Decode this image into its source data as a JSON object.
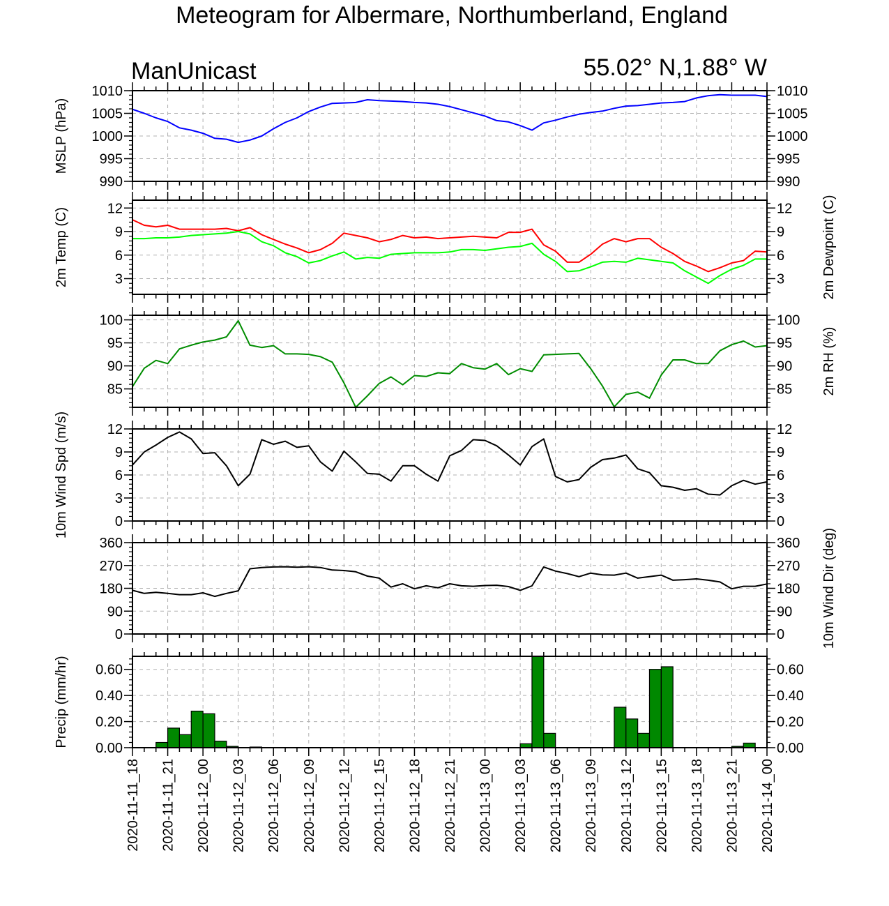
{
  "header": {
    "title": "Meteogram for Albermare, Northumberland, England",
    "source": "ManUnicast",
    "location": "55.02° N,1.88° W"
  },
  "colors": {
    "mslp": "#0000ff",
    "temp": "#ff0000",
    "dewpoint": "#00ff00",
    "rh": "#008c00",
    "wind": "#000000",
    "precip_fill": "#008800",
    "grid": "#b0b0b0"
  },
  "chart_data": [
    {
      "type": "line",
      "ylabel": "MSLP (hPa)",
      "ylim": [
        990,
        1010
      ],
      "yticks": [
        990,
        995,
        1000,
        1005,
        1010
      ],
      "x_hours": [
        0,
        1,
        2,
        3,
        4,
        5,
        6,
        7,
        8,
        9,
        10,
        11,
        12,
        13,
        14,
        15,
        16,
        17,
        18,
        19,
        20,
        21,
        22,
        23,
        24,
        25,
        26,
        27,
        28,
        29,
        30,
        31,
        32,
        33,
        34,
        35,
        36,
        37,
        38,
        39,
        40,
        41,
        42,
        43,
        44,
        45,
        46,
        47,
        48,
        49,
        50,
        51,
        52,
        53,
        54
      ],
      "series": [
        {
          "color_key": "mslp",
          "values": [
            1005.9,
            1005.0,
            1004.0,
            1003.2,
            1001.8,
            1001.3,
            1000.6,
            999.5,
            999.3,
            998.6,
            999.1,
            1000.0,
            1001.6,
            1003.0,
            1004.0,
            1005.4,
            1006.4,
            1007.2,
            1007.3,
            1007.4,
            1008.0,
            1007.8,
            1007.7,
            1007.6,
            1007.4,
            1007.3,
            1007.0,
            1006.5,
            1005.8,
            1005.1,
            1004.4,
            1003.4,
            1003.1,
            1002.3,
            1001.3,
            1002.9,
            1003.5,
            1004.2,
            1004.8,
            1005.2,
            1005.5,
            1006.1,
            1006.6,
            1006.7,
            1007.0,
            1007.3,
            1007.4,
            1007.6,
            1008.4,
            1008.9,
            1009.1,
            1009.0,
            1009.0,
            1009.0,
            1008.7
          ]
        }
      ]
    },
    {
      "type": "line",
      "ylabel": "2m Temp (C)",
      "ylabel_right": "2m Dewpoint (C)",
      "ylim": [
        1,
        13
      ],
      "yticks": [
        3,
        6,
        9,
        12
      ],
      "x_hours": [
        0,
        1,
        2,
        3,
        4,
        5,
        6,
        7,
        8,
        9,
        10,
        11,
        12,
        13,
        14,
        15,
        16,
        17,
        18,
        19,
        20,
        21,
        22,
        23,
        24,
        25,
        26,
        27,
        28,
        29,
        30,
        31,
        32,
        33,
        34,
        35,
        36,
        37,
        38,
        39,
        40,
        41,
        42,
        43,
        44,
        45,
        46,
        47,
        48,
        49,
        50,
        51,
        52,
        53,
        54
      ],
      "series": [
        {
          "color_key": "temp",
          "values": [
            10.5,
            9.8,
            9.6,
            9.8,
            9.3,
            9.3,
            9.3,
            9.3,
            9.4,
            9.1,
            9.5,
            8.6,
            8.0,
            7.4,
            6.9,
            6.3,
            6.7,
            7.5,
            8.8,
            8.5,
            8.2,
            7.7,
            8.0,
            8.5,
            8.2,
            8.3,
            8.1,
            8.2,
            8.3,
            8.4,
            8.3,
            8.2,
            8.9,
            8.9,
            9.3,
            7.3,
            6.5,
            5.1,
            5.1,
            6.1,
            7.4,
            8.1,
            7.7,
            8.1,
            8.1,
            7.0,
            6.2,
            5.2,
            4.6,
            3.9,
            4.4,
            5.0,
            5.3,
            6.5,
            6.4
          ]
        },
        {
          "color_key": "dewpoint",
          "values": [
            8.1,
            8.1,
            8.2,
            8.2,
            8.3,
            8.5,
            8.6,
            8.7,
            8.8,
            9.0,
            8.7,
            7.7,
            7.2,
            6.3,
            5.8,
            5.0,
            5.3,
            5.9,
            6.4,
            5.5,
            5.7,
            5.6,
            6.1,
            6.2,
            6.3,
            6.3,
            6.3,
            6.4,
            6.7,
            6.7,
            6.6,
            6.8,
            7.0,
            7.1,
            7.5,
            6.1,
            5.2,
            3.9,
            4.0,
            4.5,
            5.1,
            5.2,
            5.1,
            5.6,
            5.4,
            5.2,
            5.0,
            4.0,
            3.2,
            2.4,
            3.4,
            4.2,
            4.7,
            5.5,
            5.5
          ]
        }
      ]
    },
    {
      "type": "line",
      "ylabel_right": "2m RH (%)",
      "ylim": [
        81,
        101
      ],
      "yticks": [
        85,
        90,
        95,
        100
      ],
      "x_hours": [
        0,
        1,
        2,
        3,
        4,
        5,
        6,
        7,
        8,
        9,
        10,
        11,
        12,
        13,
        14,
        15,
        16,
        17,
        18,
        19,
        20,
        21,
        22,
        23,
        24,
        25,
        26,
        27,
        28,
        29,
        30,
        31,
        32,
        33,
        34,
        35,
        36,
        37,
        38,
        39,
        40,
        41,
        42,
        43,
        44,
        45,
        46,
        47,
        48,
        49,
        50,
        51,
        52,
        53,
        54
      ],
      "series": [
        {
          "color_key": "rh",
          "values": [
            85.5,
            89.5,
            91.2,
            90.5,
            93.7,
            94.5,
            95.2,
            95.6,
            96.3,
            99.8,
            94.5,
            94.0,
            94.4,
            92.6,
            92.6,
            92.5,
            92.0,
            90.8,
            86.3,
            81.0,
            83.5,
            86.2,
            87.6,
            85.9,
            87.9,
            87.7,
            88.5,
            88.3,
            90.5,
            89.6,
            89.3,
            90.5,
            88.1,
            89.4,
            88.8,
            92.4,
            92.5,
            92.6,
            92.7,
            89.4,
            85.6,
            81.1,
            83.8,
            84.3,
            83.0,
            88.0,
            91.3,
            91.3,
            90.5,
            90.5,
            93.3,
            94.6,
            95.4,
            94.1,
            94.4
          ]
        }
      ]
    },
    {
      "type": "line",
      "ylabel": "10m Wind Spd (m/s)",
      "ylim": [
        0,
        12
      ],
      "yticks": [
        0,
        3,
        6,
        9,
        12
      ],
      "x_hours": [
        0,
        1,
        2,
        3,
        4,
        5,
        6,
        7,
        8,
        9,
        10,
        11,
        12,
        13,
        14,
        15,
        16,
        17,
        18,
        19,
        20,
        21,
        22,
        23,
        24,
        25,
        26,
        27,
        28,
        29,
        30,
        31,
        32,
        33,
        34,
        35,
        36,
        37,
        38,
        39,
        40,
        41,
        42,
        43,
        44,
        45,
        46,
        47,
        48,
        49,
        50,
        51,
        52,
        53,
        54
      ],
      "series": [
        {
          "color_key": "wind",
          "values": [
            7.3,
            9.0,
            9.9,
            10.9,
            11.6,
            10.7,
            8.8,
            8.9,
            7.2,
            4.6,
            6.1,
            10.6,
            10.0,
            10.4,
            9.6,
            9.8,
            7.7,
            6.5,
            9.1,
            7.7,
            6.2,
            6.1,
            5.2,
            7.2,
            7.2,
            6.1,
            5.2,
            8.5,
            9.2,
            10.6,
            10.5,
            9.8,
            8.6,
            7.3,
            9.7,
            10.7,
            5.8,
            5.1,
            5.4,
            7.0,
            8.0,
            8.2,
            8.6,
            6.8,
            6.3,
            4.6,
            4.4,
            4.0,
            4.2,
            3.5,
            3.4,
            4.6,
            5.3,
            4.8,
            5.1
          ]
        }
      ]
    },
    {
      "type": "line",
      "ylabel_right": "10m Wind Dir (deg)",
      "ylim": [
        0,
        360
      ],
      "yticks": [
        0,
        90,
        180,
        270,
        360
      ],
      "x_hours": [
        0,
        1,
        2,
        3,
        4,
        5,
        6,
        7,
        8,
        9,
        10,
        11,
        12,
        13,
        14,
        15,
        16,
        17,
        18,
        19,
        20,
        21,
        22,
        23,
        24,
        25,
        26,
        27,
        28,
        29,
        30,
        31,
        32,
        33,
        34,
        35,
        36,
        37,
        38,
        39,
        40,
        41,
        42,
        43,
        44,
        45,
        46,
        47,
        48,
        49,
        50,
        51,
        52,
        53,
        54
      ],
      "series": [
        {
          "color_key": "wind",
          "values": [
            172,
            160,
            164,
            160,
            155,
            155,
            162,
            148,
            160,
            170,
            257,
            262,
            264,
            265,
            263,
            265,
            262,
            252,
            250,
            245,
            228,
            220,
            185,
            198,
            178,
            190,
            182,
            198,
            190,
            188,
            191,
            192,
            187,
            172,
            190,
            264,
            248,
            238,
            226,
            240,
            233,
            232,
            240,
            220,
            226,
            232,
            212,
            214,
            217,
            212,
            205,
            178,
            188,
            188,
            197
          ]
        }
      ]
    },
    {
      "type": "bar",
      "ylabel": "Precip (mm/hr)",
      "ylim": [
        0,
        0.7
      ],
      "yticks": [
        "0.00",
        "0.20",
        "0.40",
        "0.60"
      ],
      "x_hours": [
        0,
        1,
        2,
        3,
        4,
        5,
        6,
        7,
        8,
        9,
        10,
        11,
        12,
        13,
        14,
        15,
        16,
        17,
        18,
        19,
        20,
        21,
        22,
        23,
        24,
        25,
        26,
        27,
        28,
        29,
        30,
        31,
        32,
        33,
        34,
        35,
        36,
        37,
        38,
        39,
        40,
        41,
        42,
        43,
        44,
        45,
        46,
        47,
        48,
        49,
        50,
        51,
        52,
        53
      ],
      "series": [
        {
          "color_key": "precip_fill",
          "values": [
            0,
            0,
            0.04,
            0.15,
            0.1,
            0.28,
            0.26,
            0.05,
            0.01,
            0,
            0.005,
            0,
            0,
            0,
            0,
            0,
            0.002,
            0,
            0,
            0,
            0,
            0,
            0,
            0,
            0,
            0,
            0,
            0,
            0,
            0,
            0,
            0,
            0,
            0.03,
            0.7,
            0.11,
            0,
            0,
            0,
            0,
            0,
            0.31,
            0.22,
            0.11,
            0.6,
            0.62,
            0,
            0,
            0,
            0,
            0,
            0.01,
            0.035,
            0
          ]
        }
      ]
    }
  ],
  "x_axis": {
    "range_hours": [
      0,
      54
    ],
    "tick_hours": [
      0,
      3,
      6,
      9,
      12,
      15,
      18,
      21,
      24,
      27,
      30,
      33,
      36,
      39,
      42,
      45,
      48,
      51,
      54
    ],
    "tick_labels": [
      "2020-11-11_18",
      "2020-11-11_21",
      "2020-11-12_00",
      "2020-11-12_03",
      "2020-11-12_06",
      "2020-11-12_09",
      "2020-11-12_12",
      "2020-11-12_15",
      "2020-11-12_18",
      "2020-11-12_21",
      "2020-11-13_00",
      "2020-11-13_03",
      "2020-11-13_06",
      "2020-11-13_09",
      "2020-11-13_12",
      "2020-11-13_15",
      "2020-11-13_18",
      "2020-11-13_21",
      "2020-11-14_00"
    ]
  }
}
